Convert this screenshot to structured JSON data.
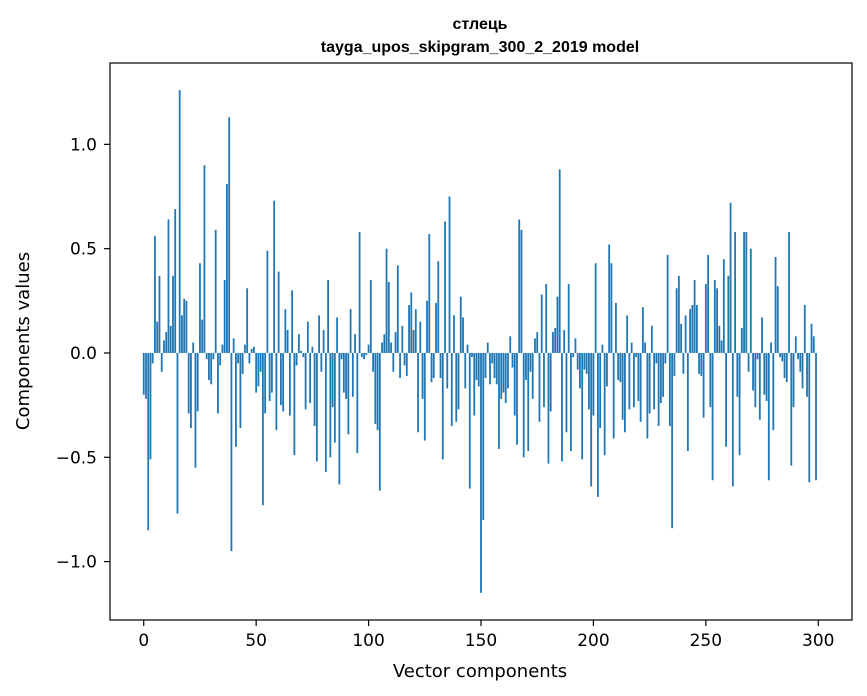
{
  "chart_data": {
    "type": "bar",
    "title": "стлець",
    "subtitle": "tayga_upos_skipgram_300_2_2019 model",
    "xlabel": "Vector components",
    "ylabel": "Components values",
    "xlim": [
      -15,
      315
    ],
    "ylim": [
      -1.28,
      1.39
    ],
    "xticks": [
      0,
      50,
      100,
      150,
      200,
      250,
      300
    ],
    "yticks": [
      -1.0,
      -0.5,
      0.0,
      0.5,
      1.0
    ],
    "xtick_labels": [
      "0",
      "50",
      "100",
      "150",
      "200",
      "250",
      "300"
    ],
    "ytick_labels": [
      "−1.0",
      "−0.5",
      "0.0",
      "0.5",
      "1.0"
    ],
    "grid": false,
    "bar_color": "#1f77b4",
    "values": [
      -0.2,
      -0.22,
      -0.85,
      -0.51,
      -0.05,
      0.56,
      0.15,
      0.37,
      -0.09,
      0.06,
      0.1,
      0.64,
      0.13,
      0.37,
      0.69,
      -0.77,
      1.26,
      0.18,
      0.26,
      0.25,
      -0.29,
      -0.36,
      0.05,
      -0.55,
      -0.28,
      0.43,
      0.16,
      0.9,
      -0.03,
      -0.13,
      -0.15,
      -0.03,
      0.59,
      -0.29,
      -0.06,
      0.04,
      0.35,
      0.81,
      1.13,
      -0.95,
      0.07,
      -0.45,
      -0.05,
      -0.36,
      -0.1,
      0.04,
      0.31,
      -0.05,
      0.02,
      0.03,
      -0.19,
      -0.16,
      -0.09,
      -0.73,
      -0.29,
      0.49,
      -0.23,
      -0.19,
      0.73,
      -0.37,
      0.39,
      -0.25,
      -0.28,
      0.21,
      0.11,
      -0.3,
      0.3,
      -0.49,
      -0.06,
      0.09,
      0.01,
      -0.02,
      -0.27,
      0.15,
      -0.24,
      0.03,
      -0.35,
      -0.52,
      0.18,
      -0.09,
      0.11,
      -0.57,
      0.35,
      -0.5,
      -0.26,
      -0.43,
      0.17,
      -0.63,
      -0.03,
      -0.19,
      -0.22,
      -0.39,
      0.21,
      -0.21,
      0.09,
      -0.48,
      0.58,
      -0.02,
      -0.03,
      -0.01,
      0.04,
      0.35,
      -0.09,
      -0.34,
      -0.37,
      -0.66,
      0.05,
      0.09,
      0.5,
      0.34,
      0.05,
      -0.09,
      0.1,
      0.42,
      -0.12,
      0.13,
      -0.06,
      -0.11,
      0.23,
      0.29,
      0.11,
      0.21,
      -0.38,
      0.15,
      -0.22,
      -0.42,
      0.25,
      0.57,
      -0.14,
      -0.12,
      0.24,
      0.44,
      -0.12,
      -0.51,
      0.63,
      -0.17,
      0.75,
      -0.35,
      0.18,
      -0.33,
      -0.27,
      0.27,
      0.17,
      -0.17,
      0.04,
      -0.65,
      -0.02,
      -0.3,
      -0.13,
      -0.16,
      -1.15,
      -0.8,
      -0.12,
      0.05,
      -0.15,
      -0.05,
      -0.12,
      -0.15,
      -0.46,
      -0.22,
      -0.19,
      -0.24,
      -0.17,
      0.08,
      -0.07,
      -0.3,
      -0.44,
      0.64,
      0.59,
      -0.5,
      -0.13,
      -0.47,
      -0.09,
      -0.22,
      0.07,
      0.1,
      -0.33,
      0.28,
      -0.26,
      0.33,
      -0.53,
      -0.28,
      0.1,
      0.12,
      0.27,
      0.88,
      -0.52,
      0.11,
      -0.38,
      0.33,
      -0.47,
      -0.02,
      0.07,
      -0.08,
      -0.17,
      -0.51,
      -0.08,
      -0.1,
      -0.27,
      -0.64,
      -0.3,
      0.43,
      -0.69,
      -0.36,
      0.04,
      -0.49,
      -0.16,
      0.52,
      0.43,
      -0.41,
      0.24,
      -0.13,
      -0.14,
      -0.32,
      -0.38,
      0.18,
      -0.27,
      0.05,
      -0.26,
      -0.02,
      -0.23,
      -0.33,
      0.22,
      0.05,
      -0.41,
      -0.29,
      0.13,
      -0.27,
      -0.05,
      -0.35,
      -0.24,
      -0.21,
      -0.05,
      0.47,
      -0.35,
      -0.84,
      -0.11,
      0.31,
      0.37,
      0.14,
      -0.1,
      0.18,
      -0.47,
      0.21,
      0.23,
      0.35,
      0.23,
      -0.1,
      -0.11,
      -0.31,
      0.33,
      0.47,
      -0.26,
      -0.61,
      0.35,
      0.31,
      0.13,
      0.06,
      0.45,
      -0.45,
      0.37,
      0.72,
      -0.64,
      0.58,
      -0.21,
      -0.49,
      0.12,
      0.58,
      0.58,
      -0.09,
      0.5,
      -0.18,
      -0.26,
      -0.03,
      -0.32,
      0.17,
      -0.2,
      -0.23,
      -0.61,
      0.05,
      -0.37,
      0.46,
      0.32,
      -0.02,
      -0.04,
      -0.12,
      -0.14,
      0.58,
      -0.54,
      -0.26,
      0.08,
      -0.03,
      -0.09,
      -0.17,
      0.23,
      -0.21,
      -0.62,
      0.14,
      0.08,
      -0.61
    ]
  }
}
